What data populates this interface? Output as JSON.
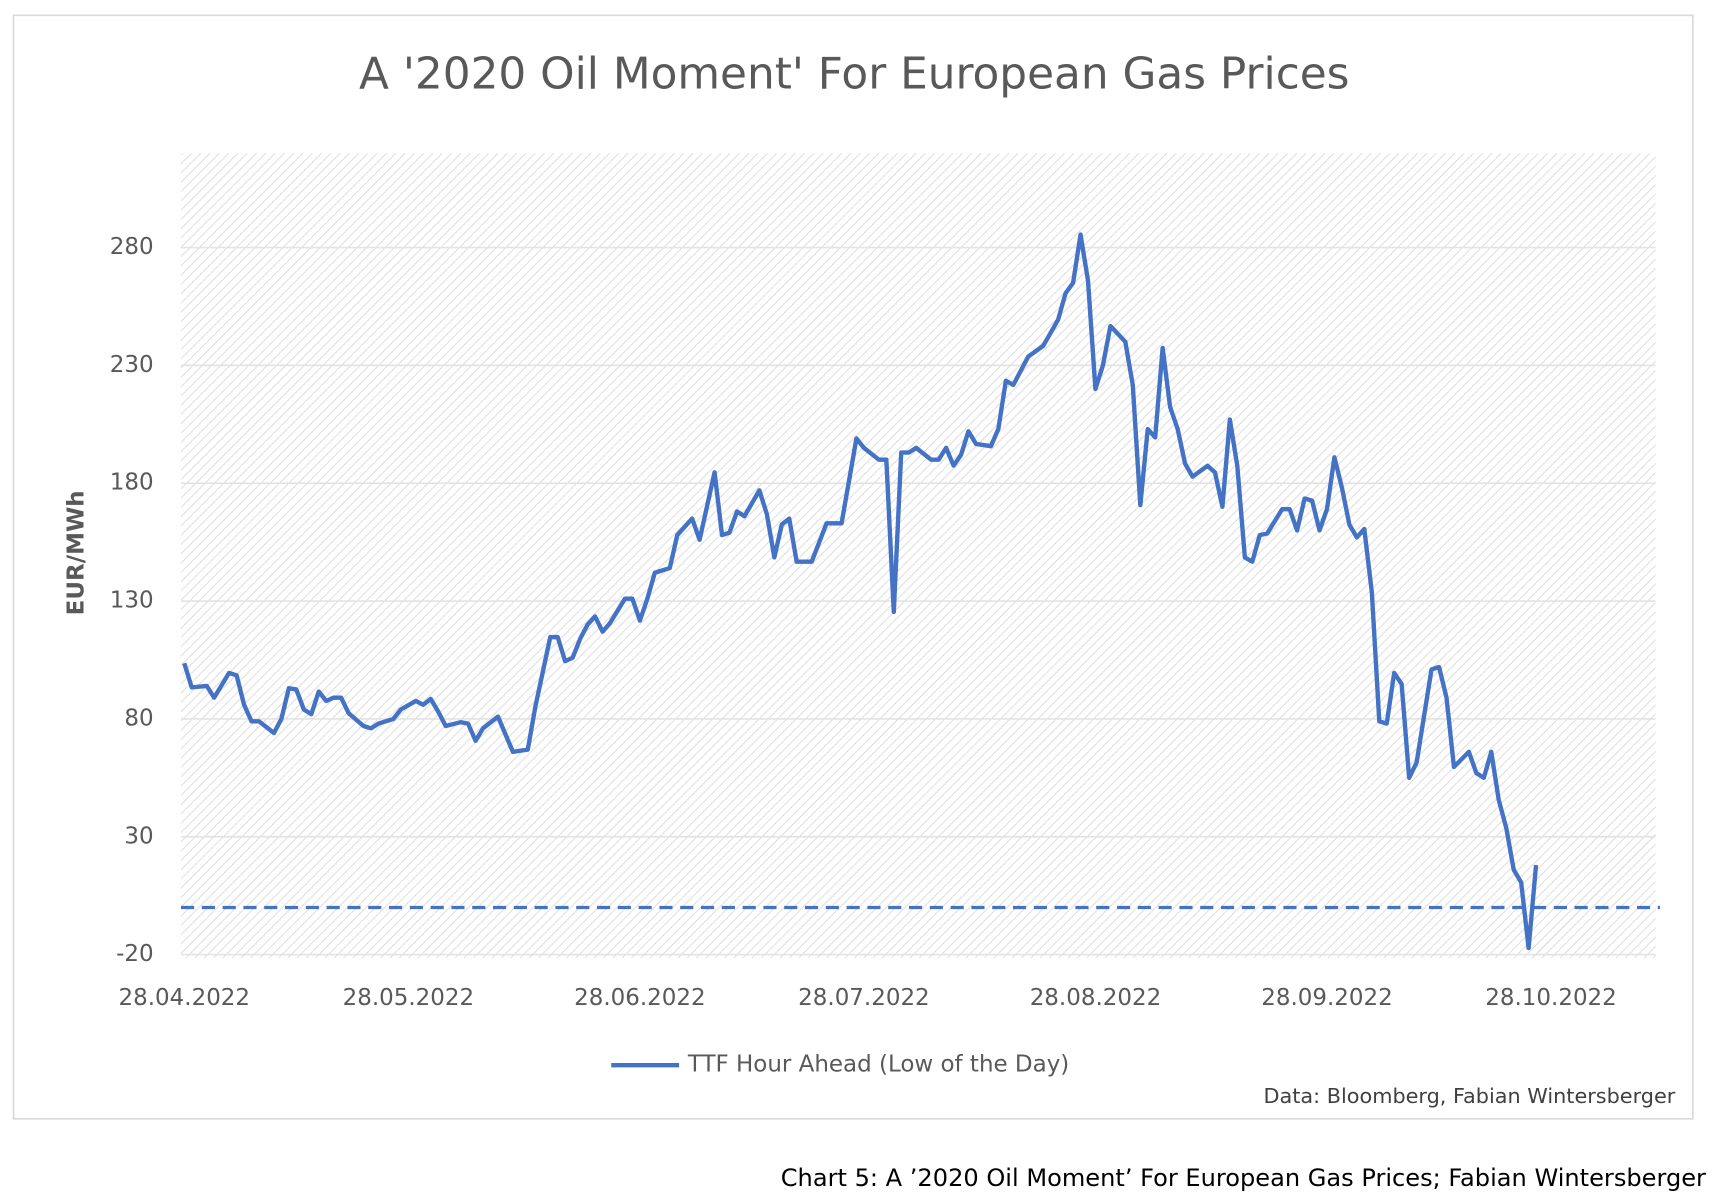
{
  "chart_data": {
    "type": "line",
    "title": "A '2020 Oil Moment' For European Gas Prices",
    "y_label": "EUR/MWh",
    "source": "Data: Bloomberg, Fabian Wintersberger",
    "caption": "Chart 5: A ’2020 Oil Moment’ For European Gas Prices; Fabian Wintersberger",
    "xlim": [
      "28.04.2022",
      "11.11.2022"
    ],
    "xticks": [
      "28.04.2022",
      "28.05.2022",
      "28.06.2022",
      "28.07.2022",
      "28.08.2022",
      "28.09.2022",
      "28.10.2022"
    ],
    "ylim": [
      -20,
      320
    ],
    "yticks": [
      -20,
      30,
      80,
      130,
      180,
      230,
      280
    ],
    "grid": true,
    "hline": 0,
    "legend": "bottom",
    "x": [
      "28.04.2022",
      "29.04.2022",
      "01.05.2022",
      "02.05.2022",
      "04.05.2022",
      "05.05.2022",
      "06.05.2022",
      "07.05.2022",
      "08.05.2022",
      "10.05.2022",
      "11.05.2022",
      "12.05.2022",
      "13.05.2022",
      "14.05.2022",
      "15.05.2022",
      "16.05.2022",
      "17.05.2022",
      "18.05.2022",
      "19.05.2022",
      "20.05.2022",
      "22.05.2022",
      "23.05.2022",
      "24.05.2022",
      "26.05.2022",
      "27.05.2022",
      "29.05.2022",
      "30.05.2022",
      "31.05.2022",
      "01.06.2022",
      "02.06.2022",
      "04.06.2022",
      "05.06.2022",
      "06.06.2022",
      "07.06.2022",
      "09.06.2022",
      "11.06.2022",
      "13.06.2022",
      "14.06.2022",
      "16.06.2022",
      "17.06.2022",
      "18.06.2022",
      "19.06.2022",
      "20.06.2022",
      "21.06.2022",
      "22.06.2022",
      "23.06.2022",
      "24.06.2022",
      "26.06.2022",
      "27.06.2022",
      "28.06.2022",
      "29.06.2022",
      "30.06.2022",
      "02.07.2022",
      "03.07.2022",
      "05.07.2022",
      "06.07.2022",
      "08.07.2022",
      "09.07.2022",
      "10.07.2022",
      "11.07.2022",
      "12.07.2022",
      "14.07.2022",
      "15.07.2022",
      "16.07.2022",
      "17.07.2022",
      "18.07.2022",
      "19.07.2022",
      "21.07.2022",
      "23.07.2022",
      "25.07.2022",
      "27.07.2022",
      "28.07.2022",
      "30.07.2022",
      "31.07.2022",
      "01.08.2022",
      "02.08.2022",
      "03.08.2022",
      "04.08.2022",
      "06.08.2022",
      "07.08.2022",
      "08.08.2022",
      "09.08.2022",
      "10.08.2022",
      "11.08.2022",
      "12.08.2022",
      "14.08.2022",
      "15.08.2022",
      "16.08.2022",
      "17.08.2022",
      "19.08.2022",
      "21.08.2022",
      "23.08.2022",
      "24.08.2022",
      "25.08.2022",
      "26.08.2022",
      "27.08.2022",
      "28.08.2022",
      "29.08.2022",
      "30.08.2022",
      "01.09.2022",
      "02.09.2022",
      "03.09.2022",
      "04.09.2022",
      "05.09.2022",
      "06.09.2022",
      "07.09.2022",
      "08.09.2022",
      "09.09.2022",
      "10.09.2022",
      "12.09.2022",
      "13.09.2022",
      "14.09.2022",
      "15.09.2022",
      "16.09.2022",
      "17.09.2022",
      "18.09.2022",
      "19.09.2022",
      "20.09.2022",
      "22.09.2022",
      "23.09.2022",
      "24.09.2022",
      "25.09.2022",
      "26.09.2022",
      "27.09.2022",
      "28.09.2022",
      "29.09.2022",
      "30.09.2022",
      "01.10.2022",
      "02.10.2022",
      "03.10.2022",
      "04.10.2022",
      "05.10.2022",
      "06.10.2022",
      "07.10.2022",
      "08.10.2022",
      "09.10.2022",
      "10.10.2022",
      "12.10.2022",
      "13.10.2022",
      "14.10.2022",
      "15.10.2022",
      "17.10.2022",
      "18.10.2022",
      "19.10.2022",
      "20.10.2022",
      "21.10.2022",
      "22.10.2022",
      "23.10.2022",
      "24.10.2022",
      "25.10.2022",
      "26.10.2022"
    ],
    "series": [
      {
        "name": "TTF Hour Ahead (Low of the Day)",
        "color": "#4472c4",
        "values": [
          103.6,
          93.4,
          94,
          89,
          99.5,
          98.5,
          86,
          79,
          79,
          74,
          80,
          93,
          92.5,
          84,
          82,
          91.6,
          87.6,
          89,
          89,
          82.4,
          77,
          76,
          78,
          80,
          84,
          87.6,
          86,
          88.5,
          83,
          77,
          78.6,
          78,
          70.7,
          76,
          81,
          66,
          67,
          85,
          114.7,
          114.7,
          104.5,
          106,
          114,
          120,
          123.5,
          117,
          120.7,
          131,
          131,
          121.7,
          131,
          142,
          144,
          158,
          165,
          156,
          184.6,
          158,
          159,
          168,
          166,
          177,
          167,
          148.5,
          162.5,
          165,
          146.7,
          146.7,
          163,
          163,
          199,
          195,
          190,
          190,
          125.4,
          193,
          193,
          195,
          190,
          190,
          195,
          187.5,
          192,
          202,
          196.7,
          195.7,
          203,
          223.5,
          221.7,
          233.7,
          238.3,
          249.4,
          260.6,
          265,
          285.5,
          266,
          220,
          230,
          246.7,
          240,
          221.7,
          170.7,
          203,
          199.4,
          237.4,
          212.4,
          203,
          188.3,
          182.8,
          187.4,
          184.6,
          170,
          207,
          187.4,
          148.5,
          146.7,
          158,
          158.7,
          169,
          169,
          160,
          173.5,
          172.6,
          160,
          169,
          191,
          178,
          162.4,
          157,
          160.6,
          133.7,
          79,
          78,
          99.5,
          94.8,
          55,
          61.5,
          101,
          102,
          89,
          59.6,
          66,
          57,
          55,
          66,
          45.7,
          33.7,
          16,
          10.6,
          -17.2,
          18
        ]
      }
    ]
  }
}
